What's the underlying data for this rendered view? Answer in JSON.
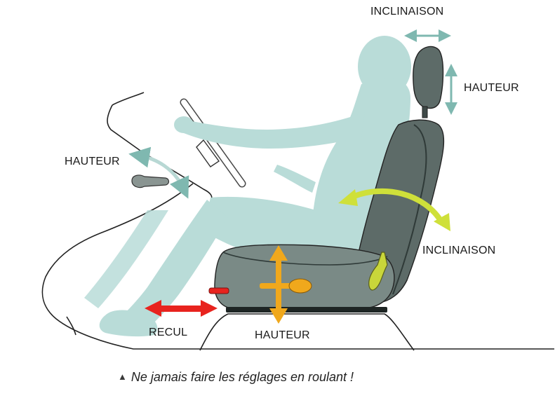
{
  "labels": {
    "headrest_tilt": "INCLINAISON",
    "headrest_height": "HAUTEUR",
    "steering_height": "HAUTEUR",
    "backrest_tilt": "INCLINAISON",
    "slide": "RECUL",
    "seat_height": "HAUTEUR"
  },
  "caption": {
    "icon": "triangle-warning-icon",
    "text": "Ne jamais faire les réglages en roulant !"
  },
  "colors": {
    "figure": "#b9dcd8",
    "seat_dark": "#5d6b68",
    "seat_mid": "#7a8a86",
    "arrow_teal": "#7fb8b0",
    "arrow_lime": "#cfe03a",
    "arrow_amber": "#f0a81c",
    "arrow_red": "#e8231e",
    "lever_gray": "#8a9592"
  }
}
